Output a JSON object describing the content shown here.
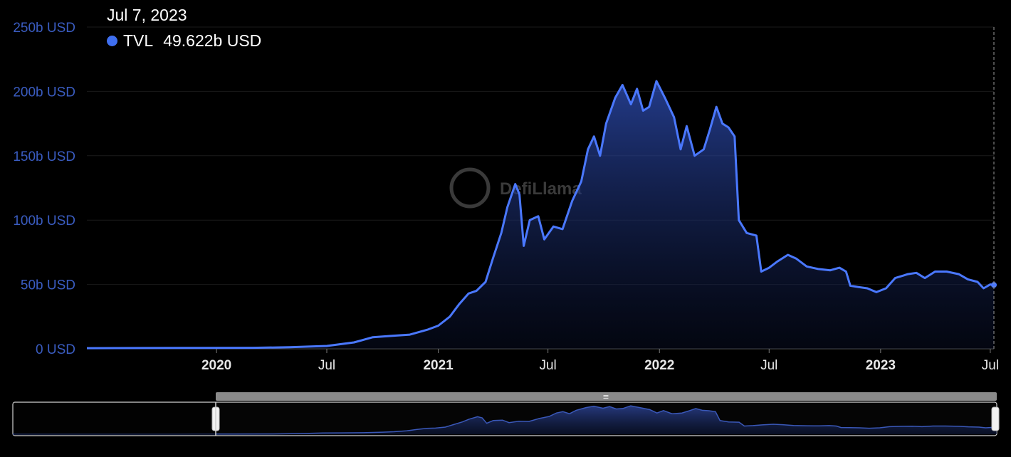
{
  "tooltip": {
    "date": "Jul 7, 2023",
    "series_label": "TVL",
    "value": "49.622b USD",
    "dot_color": "#3f6ff0"
  },
  "watermark": {
    "text": "DefiLlama"
  },
  "colors": {
    "line": "#4a78ff",
    "axis_label": "#3a5cc0",
    "background": "#000000",
    "grid": "#1a1a1a",
    "zoom_bar": "#8a8a8a"
  },
  "chart_data": {
    "type": "area",
    "title": "",
    "xlabel": "",
    "ylabel": "",
    "ylim": [
      0,
      250
    ],
    "y_unit": "b USD",
    "y_ticks": [
      {
        "value": 0,
        "label": "0 USD"
      },
      {
        "value": 50,
        "label": "50b USD"
      },
      {
        "value": 100,
        "label": "100b USD"
      },
      {
        "value": 150,
        "label": "150b USD"
      },
      {
        "value": 200,
        "label": "200b USD"
      },
      {
        "value": 250,
        "label": "250b USD"
      }
    ],
    "x_ticks": [
      {
        "date": "2020-01-01",
        "label": "2020",
        "bold": true
      },
      {
        "date": "2020-07-01",
        "label": "Jul",
        "bold": false
      },
      {
        "date": "2021-01-01",
        "label": "2021",
        "bold": true
      },
      {
        "date": "2021-07-01",
        "label": "Jul",
        "bold": false
      },
      {
        "date": "2022-01-01",
        "label": "2022",
        "bold": true
      },
      {
        "date": "2022-07-01",
        "label": "Jul",
        "bold": false
      },
      {
        "date": "2023-01-01",
        "label": "2023",
        "bold": true
      },
      {
        "date": "2023-07-01",
        "label": "Jul",
        "bold": false
      }
    ],
    "x_range": [
      "2019-06-01",
      "2023-07-07"
    ],
    "grid": true,
    "series": [
      {
        "name": "TVL",
        "points": [
          [
            "2019-06-01",
            0.5
          ],
          [
            "2019-09-01",
            0.6
          ],
          [
            "2019-12-01",
            0.7
          ],
          [
            "2020-03-01",
            0.8
          ],
          [
            "2020-05-01",
            1.2
          ],
          [
            "2020-07-01",
            2.2
          ],
          [
            "2020-08-15",
            5
          ],
          [
            "2020-09-15",
            9
          ],
          [
            "2020-10-15",
            10
          ],
          [
            "2020-11-15",
            11
          ],
          [
            "2020-12-15",
            15
          ],
          [
            "2021-01-01",
            18
          ],
          [
            "2021-01-20",
            25
          ],
          [
            "2021-02-05",
            35
          ],
          [
            "2021-02-20",
            43
          ],
          [
            "2021-03-05",
            45
          ],
          [
            "2021-03-20",
            52
          ],
          [
            "2021-04-01",
            70
          ],
          [
            "2021-04-15",
            90
          ],
          [
            "2021-04-25",
            110
          ],
          [
            "2021-05-08",
            128
          ],
          [
            "2021-05-15",
            120
          ],
          [
            "2021-05-22",
            80
          ],
          [
            "2021-06-01",
            100
          ],
          [
            "2021-06-15",
            103
          ],
          [
            "2021-06-25",
            85
          ],
          [
            "2021-07-10",
            95
          ],
          [
            "2021-07-25",
            93
          ],
          [
            "2021-08-10",
            115
          ],
          [
            "2021-08-25",
            130
          ],
          [
            "2021-09-05",
            155
          ],
          [
            "2021-09-15",
            165
          ],
          [
            "2021-09-25",
            150
          ],
          [
            "2021-10-05",
            175
          ],
          [
            "2021-10-20",
            195
          ],
          [
            "2021-11-01",
            205
          ],
          [
            "2021-11-15",
            190
          ],
          [
            "2021-11-25",
            202
          ],
          [
            "2021-12-05",
            185
          ],
          [
            "2021-12-15",
            188
          ],
          [
            "2021-12-27",
            208
          ],
          [
            "2022-01-10",
            195
          ],
          [
            "2022-01-25",
            180
          ],
          [
            "2022-02-05",
            155
          ],
          [
            "2022-02-15",
            173
          ],
          [
            "2022-02-28",
            150
          ],
          [
            "2022-03-15",
            155
          ],
          [
            "2022-03-25",
            170
          ],
          [
            "2022-04-05",
            188
          ],
          [
            "2022-04-15",
            175
          ],
          [
            "2022-04-25",
            172
          ],
          [
            "2022-05-05",
            165
          ],
          [
            "2022-05-12",
            100
          ],
          [
            "2022-05-25",
            90
          ],
          [
            "2022-06-10",
            88
          ],
          [
            "2022-06-18",
            60
          ],
          [
            "2022-07-01",
            63
          ],
          [
            "2022-07-15",
            68
          ],
          [
            "2022-08-01",
            73
          ],
          [
            "2022-08-15",
            70
          ],
          [
            "2022-09-01",
            64
          ],
          [
            "2022-09-20",
            62
          ],
          [
            "2022-10-10",
            61
          ],
          [
            "2022-10-25",
            63
          ],
          [
            "2022-11-05",
            60
          ],
          [
            "2022-11-12",
            49
          ],
          [
            "2022-11-25",
            48
          ],
          [
            "2022-12-10",
            47
          ],
          [
            "2022-12-25",
            44
          ],
          [
            "2023-01-10",
            47
          ],
          [
            "2023-01-25",
            55
          ],
          [
            "2023-02-15",
            58
          ],
          [
            "2023-03-01",
            59
          ],
          [
            "2023-03-15",
            55
          ],
          [
            "2023-04-01",
            60
          ],
          [
            "2023-04-20",
            60
          ],
          [
            "2023-05-10",
            58
          ],
          [
            "2023-05-25",
            54
          ],
          [
            "2023-06-10",
            52
          ],
          [
            "2023-06-20",
            47
          ],
          [
            "2023-07-01",
            50
          ],
          [
            "2023-07-07",
            49.622
          ]
        ]
      }
    ]
  },
  "zoom_slider": {
    "grip_label": "≡"
  }
}
